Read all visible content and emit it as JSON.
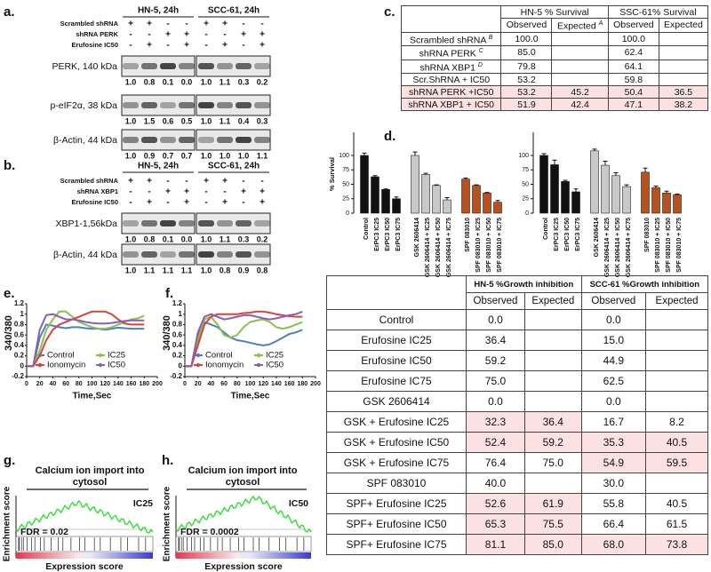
{
  "panel_labels": {
    "a": "a.",
    "b": "b.",
    "c": "c.",
    "d": "d.",
    "e": "e.",
    "f": "f.",
    "g": "g.",
    "h": "h."
  },
  "blot_a": {
    "groups": [
      "HN-5, 24h",
      "SCC-61, 24h"
    ],
    "conditions": [
      {
        "label": "Scrambled shRNA",
        "signs": [
          "+",
          "+",
          "-",
          "-",
          "+",
          "+",
          "-",
          "-"
        ]
      },
      {
        "label": "shRNA PERK",
        "signs": [
          "-",
          "-",
          "+",
          "+",
          "-",
          "-",
          "+",
          "+"
        ]
      },
      {
        "label": "Erufosine IC50",
        "signs": [
          "-",
          "+",
          "-",
          "+",
          "-",
          "+",
          "-",
          "+"
        ]
      }
    ],
    "bands": [
      {
        "label": "PERK, 140 kDa",
        "quant": [
          "1.0",
          "0.8",
          "0.1",
          "0.0",
          "1.0",
          "1.1",
          "0.3",
          "0.2"
        ]
      },
      {
        "label": "p-eIF2α, 38 kDa",
        "quant": [
          "1.0",
          "1.5",
          "0.6",
          "0.5",
          "1.0",
          "1.1",
          "0.4",
          "0.3"
        ]
      },
      {
        "label": "β-Actin, 44 kDa",
        "quant": [
          "1.0",
          "0.9",
          "0.7",
          "0.7",
          "1.0",
          "1.0",
          "1.0",
          "1.1"
        ]
      }
    ]
  },
  "blot_b": {
    "groups": [
      "HN-5, 24h",
      "SCC-61, 24h"
    ],
    "conditions": [
      {
        "label": "Scrambled shRNA",
        "signs": [
          "+",
          "+",
          "-",
          "-",
          "+",
          "+",
          "-",
          "-"
        ]
      },
      {
        "label": "shRNA XBP1",
        "signs": [
          "-",
          "-",
          "+",
          "+",
          "-",
          "-",
          "+",
          "+"
        ]
      },
      {
        "label": "Erufosine IC50",
        "signs": [
          "-",
          "+",
          "-",
          "+",
          "-",
          "+",
          "-",
          "+"
        ]
      }
    ],
    "bands": [
      {
        "label": "XBP1-1,56kDa",
        "quant": [
          "1.0",
          "0.8",
          "0.1",
          "0.0",
          "1.0",
          "1.1",
          "0.3",
          "0.2"
        ]
      },
      {
        "label": "β-Actin, 44 kDa",
        "quant": [
          "1.0",
          "1.1",
          "1.1",
          "1.1",
          "1.0",
          "0.8",
          "0.9",
          "0.8"
        ]
      }
    ]
  },
  "table_c": {
    "headers": [
      "HN-5 % Survival",
      "SSC-61% Survival"
    ],
    "subheaders": [
      {
        "text": "Observed"
      },
      {
        "text": "Expected",
        "note": "A"
      },
      {
        "text": "Observed"
      },
      {
        "text": "Expected"
      }
    ],
    "rows": [
      {
        "label": "Scrambled shRNA",
        "note": "B",
        "cells": [
          "100.0",
          null,
          "100.0",
          null
        ],
        "highlight": false
      },
      {
        "label": "shRNA PERK",
        "note": "C",
        "cells": [
          "85.0",
          null,
          "62.4",
          null
        ],
        "highlight": false
      },
      {
        "label": "shRNA XBP1",
        "note": "D",
        "cells": [
          "79.8",
          null,
          "64.1",
          null
        ],
        "highlight": false
      },
      {
        "label": "Scr.ShRNA + IC50",
        "cells": [
          "53.2",
          null,
          "59.8",
          null
        ],
        "highlight": false
      },
      {
        "label": "shRNA PERK +IC50",
        "cells": [
          "53.2",
          "45.2",
          "50.4",
          "36.5"
        ],
        "highlight": true
      },
      {
        "label": "shRNA XBP1 + IC50",
        "cells": [
          "51.9",
          "42.4",
          "47.1",
          "38.2"
        ],
        "highlight": true
      }
    ]
  },
  "chart_data": [
    {
      "type": "bar",
      "ylabel": "% Survival",
      "categories": [
        "Control",
        "ErPC3 IC25",
        "ErPC3 IC50",
        "ErPC3 IC75",
        "GSK 2606414",
        "GSK 2606414 + IC25",
        "GSK 2606414 + IC50",
        "GSK 2606414 + IC75",
        "SPF 083010",
        "SPF 083010 + IC25",
        "SPF 083010 + IC50",
        "SPF 083010 + IC75"
      ],
      "values": [
        100,
        63,
        41,
        25,
        100,
        67,
        48,
        23,
        59,
        48,
        35,
        19
      ],
      "errors": [
        4,
        2,
        1,
        3,
        6,
        2,
        1,
        4,
        2,
        1,
        1,
        3
      ],
      "colors": [
        "#111111",
        "#111111",
        "#111111",
        "#111111",
        "#c9c9c9",
        "#c9c9c9",
        "#c9c9c9",
        "#c9c9c9",
        "#b4531e",
        "#b4531e",
        "#b4531e",
        "#b4531e"
      ],
      "ylim": [
        0,
        140
      ],
      "yticks": [
        0,
        25,
        50,
        75,
        100
      ]
    },
    {
      "type": "bar",
      "categories": [
        "Control",
        "ErPC3 IC25",
        "ErPC3 IC50",
        "ErPC3 IC75",
        "GSK 2606414",
        "GSK 2606414 + IC25",
        "GSK 2606414 + IC50",
        "GSK 2606414 + IC75",
        "SPF 083010",
        "SPF 083010 + IC25",
        "SPF 083010 + IC50",
        "SPF 083010 + IC75"
      ],
      "values": [
        100,
        84,
        55,
        37,
        108,
        83,
        65,
        46,
        71,
        44,
        35,
        32
      ],
      "errors": [
        3,
        8,
        2,
        5,
        3,
        7,
        5,
        3,
        7,
        3,
        3,
        1
      ],
      "colors": [
        "#111111",
        "#111111",
        "#111111",
        "#111111",
        "#c9c9c9",
        "#c9c9c9",
        "#c9c9c9",
        "#c9c9c9",
        "#b4531e",
        "#b4531e",
        "#b4531e",
        "#b4531e"
      ],
      "ylim": [
        0,
        140
      ],
      "yticks": [
        0,
        25,
        50,
        75,
        100
      ]
    },
    {
      "type": "line",
      "ylabel": "340/380",
      "xlabel": "Time,Sec",
      "x": [
        0,
        10,
        20,
        30,
        40,
        50,
        60,
        70,
        80,
        90,
        100,
        110,
        120,
        130,
        140,
        150,
        160,
        170,
        180
      ],
      "series": [
        {
          "name": "Control",
          "color": "#4a7fc1",
          "values": [
            0,
            0,
            0.55,
            0.8,
            0.78,
            0.75,
            0.73,
            0.75,
            0.75,
            0.73,
            0.72,
            0.72,
            0.7,
            0.72,
            0.74,
            0.73,
            0.72,
            0.72,
            0.72
          ]
        },
        {
          "name": "IC25",
          "color": "#8cc04b",
          "values": [
            0,
            0,
            0.3,
            0.7,
            0.9,
            1.05,
            1.05,
            0.95,
            0.85,
            0.8,
            0.75,
            0.72,
            0.72,
            0.75,
            0.8,
            0.85,
            0.9,
            0.92,
            0.97
          ]
        },
        {
          "name": "Ionomycin",
          "color": "#d4453d",
          "values": [
            0,
            0,
            0.2,
            0.5,
            0.7,
            0.8,
            0.85,
            0.9,
            0.95,
            1.0,
            1.05,
            1.05,
            1.05,
            1.0,
            0.9,
            0.82,
            0.8,
            0.8,
            0.8
          ]
        },
        {
          "name": "IC50",
          "color": "#8a5fb0",
          "values": [
            0,
            0,
            0.7,
            0.98,
            1.0,
            0.95,
            0.9,
            0.9,
            0.88,
            0.85,
            0.83,
            0.82,
            0.82,
            0.83,
            0.85,
            0.87,
            0.88,
            0.88,
            0.88
          ]
        }
      ],
      "xlim": [
        0,
        200
      ],
      "xticks": [
        0,
        20,
        40,
        60,
        80,
        100,
        120,
        140,
        160,
        180,
        200
      ],
      "ylim": [
        -0.2,
        1.2
      ],
      "yticks": [
        -0.2,
        0,
        0.2,
        0.4,
        0.6,
        0.8,
        1,
        1.2
      ]
    },
    {
      "type": "line",
      "ylabel": "340/380",
      "xlabel": "Time,Sec",
      "x": [
        0,
        10,
        20,
        30,
        40,
        50,
        60,
        70,
        80,
        90,
        100,
        110,
        120,
        130,
        140,
        150,
        160,
        170,
        180
      ],
      "series": [
        {
          "name": "Control",
          "color": "#4a7fc1",
          "values": [
            0,
            0,
            0.6,
            0.85,
            0.8,
            0.75,
            0.65,
            0.55,
            0.5,
            0.48,
            0.45,
            0.42,
            0.4,
            0.42,
            0.48,
            0.55,
            0.62,
            0.65,
            0.7
          ]
        },
        {
          "name": "IC25",
          "color": "#8cc04b",
          "values": [
            0,
            0,
            0.5,
            0.9,
            0.95,
            0.8,
            0.6,
            0.55,
            0.6,
            0.75,
            0.85,
            0.88,
            0.9,
            0.85,
            0.75,
            0.72,
            0.75,
            0.8,
            0.85
          ]
        },
        {
          "name": "Ionomycin",
          "color": "#d4453d",
          "values": [
            0,
            0,
            0.4,
            0.8,
            0.95,
            1.0,
            1.0,
            1.0,
            1.0,
            1.02,
            1.03,
            1.05,
            1.05,
            1.03,
            1.0,
            0.98,
            0.96,
            0.95,
            0.95
          ]
        },
        {
          "name": "IC50",
          "color": "#8a5fb0",
          "values": [
            0,
            0,
            0.65,
            0.95,
            1.0,
            0.95,
            0.9,
            0.92,
            0.95,
            0.98,
            0.98,
            0.95,
            0.92,
            0.9,
            0.92,
            0.95,
            0.98,
            1.0,
            1.05
          ]
        }
      ],
      "xlim": [
        0,
        200
      ],
      "xticks": [
        0,
        20,
        40,
        60,
        80,
        100,
        120,
        140,
        160,
        180,
        200
      ],
      "ylim": [
        -0.2,
        1.2
      ],
      "yticks": [
        -0.2,
        0,
        0.2,
        0.4,
        0.6,
        0.8,
        1,
        1.2
      ]
    }
  ],
  "gsea": [
    {
      "title": "Calcium ion import into cytosol",
      "label": "IC25",
      "fdr": "FDR = 0.02",
      "ylabel": "Enrichment score",
      "xlabel": "Expression score"
    },
    {
      "title": "Calcium ion import into cytosol",
      "label": "IC50",
      "fdr": "FDR = 0.0002",
      "ylabel": "Enrichment score",
      "xlabel": "Expression score"
    }
  ],
  "table_growth": {
    "headers": [
      "HN-5 %Growth inhibition",
      "SCC-61 %Growth inhibition"
    ],
    "subheaders": [
      "Observed",
      "Expected",
      "Observed",
      "Expected"
    ],
    "rows": [
      {
        "label": "Control",
        "cells": [
          "0.0",
          null,
          "0.0",
          null
        ],
        "highlight": [
          false,
          false
        ]
      },
      {
        "label": "Erufosine IC25",
        "cells": [
          "36.4",
          null,
          "15.0",
          null
        ],
        "highlight": [
          false,
          false
        ]
      },
      {
        "label": "Erufosine IC50",
        "cells": [
          "59.2",
          null,
          "44.9",
          null
        ],
        "highlight": [
          false,
          false
        ]
      },
      {
        "label": "Erufosine IC75",
        "cells": [
          "75.0",
          null,
          "62.5",
          null
        ],
        "highlight": [
          false,
          false
        ]
      },
      {
        "label": "GSK 2606414",
        "cells": [
          "0.0",
          null,
          "0.0",
          null
        ],
        "highlight": [
          false,
          false
        ]
      },
      {
        "label": "GSK + Erufosine IC25",
        "cells": [
          "32.3",
          "36.4",
          "16.7",
          "8.2"
        ],
        "highlight": [
          true,
          false
        ]
      },
      {
        "label": "GSK + Erufosine IC50",
        "cells": [
          "52.4",
          "59.2",
          "35.3",
          "40.5"
        ],
        "highlight": [
          true,
          true
        ]
      },
      {
        "label": "GSK + Erufosine IC75",
        "cells": [
          "76.4",
          "75.0",
          "54.9",
          "59.5"
        ],
        "highlight": [
          false,
          true
        ]
      },
      {
        "label": "SPF 083010",
        "cells": [
          "40.0",
          null,
          "30.0",
          null
        ],
        "highlight": [
          false,
          false
        ]
      },
      {
        "label": "SPF+ Erufosine IC25",
        "cells": [
          "52.6",
          "61.9",
          "55.8",
          "40.5"
        ],
        "highlight": [
          true,
          false
        ]
      },
      {
        "label": "SPF+ Erufosine IC50",
        "cells": [
          "65.3",
          "75.5",
          "66.4",
          "61.5"
        ],
        "highlight": [
          true,
          false
        ]
      },
      {
        "label": "SPF+ Erufosine IC75",
        "cells": [
          "81.1",
          "85.0",
          "68.0",
          "73.8"
        ],
        "highlight": [
          true,
          true
        ]
      }
    ]
  }
}
